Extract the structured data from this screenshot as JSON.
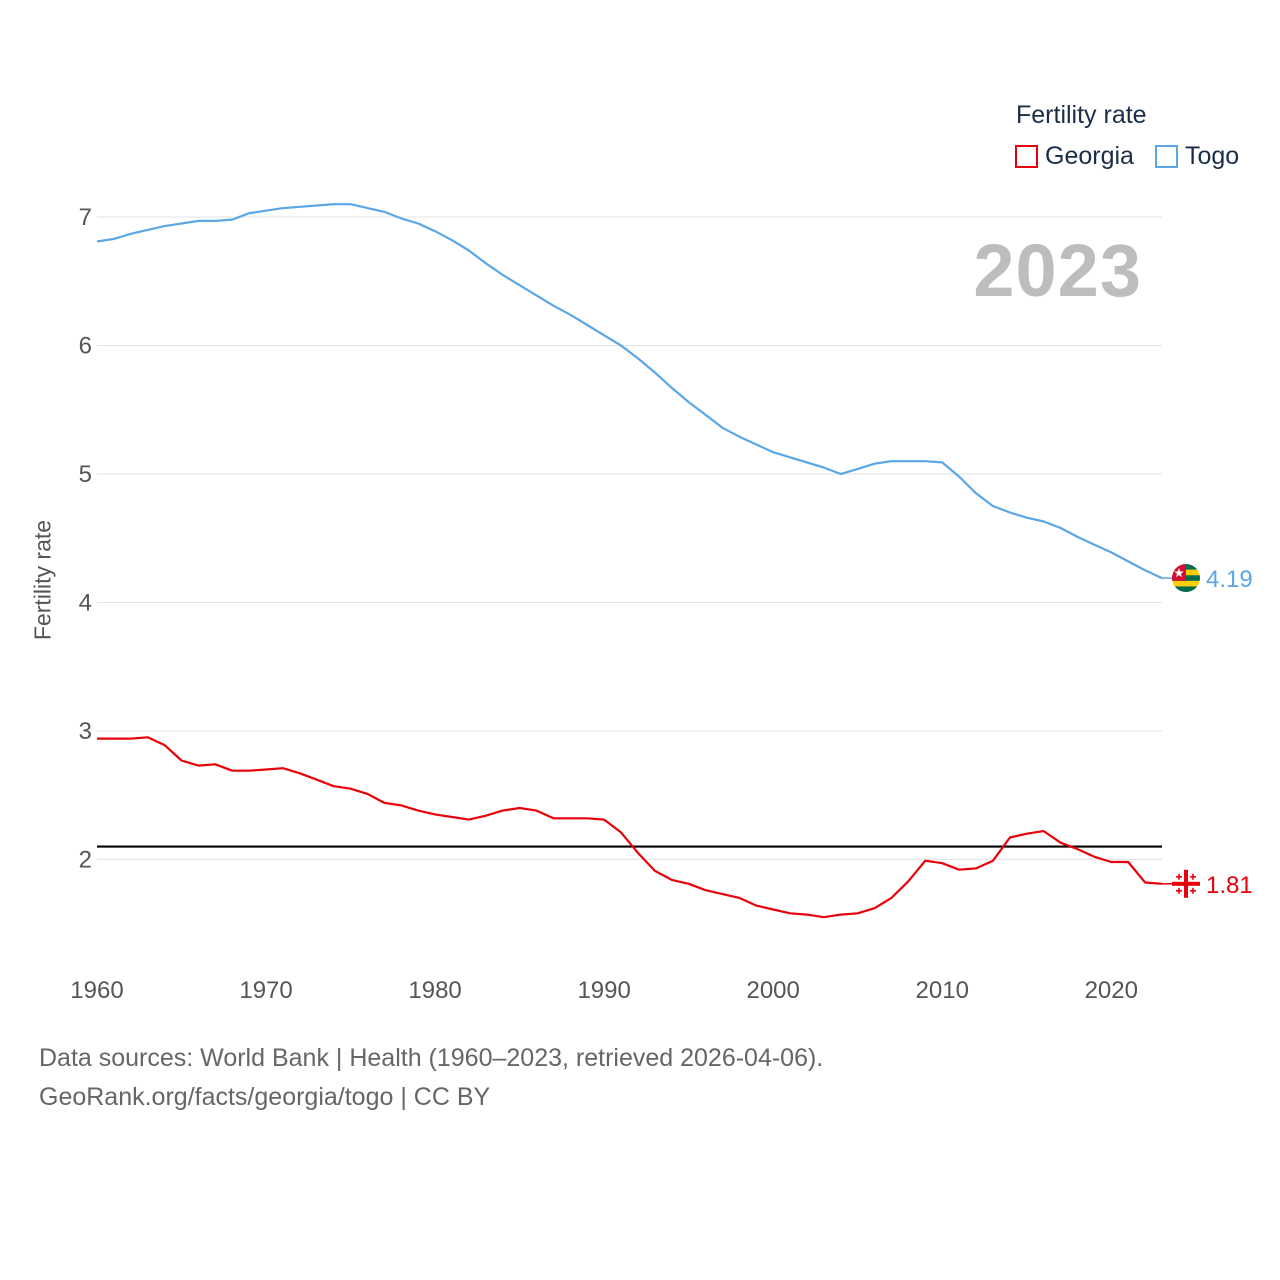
{
  "legend": {
    "title": "Fertility rate",
    "items": [
      {
        "label": "Georgia",
        "color": "#e8000b"
      },
      {
        "label": "Togo",
        "color": "#5aa6e6"
      }
    ]
  },
  "watermark_year": "2023",
  "footer": {
    "line1": "Data sources: World Bank | Health (1960–2023, retrieved 2026-04-06).",
    "line2": "GeoRank.org/facts/georgia/togo | CC BY"
  },
  "chart_data": {
    "type": "line",
    "title": "Fertility rate",
    "xlabel": "",
    "ylabel": "Fertility rate",
    "x": [
      1960,
      1961,
      1962,
      1963,
      1964,
      1965,
      1966,
      1967,
      1968,
      1969,
      1970,
      1971,
      1972,
      1973,
      1974,
      1975,
      1976,
      1977,
      1978,
      1979,
      1980,
      1981,
      1982,
      1983,
      1984,
      1985,
      1986,
      1987,
      1988,
      1989,
      1990,
      1991,
      1992,
      1993,
      1994,
      1995,
      1996,
      1997,
      1998,
      1999,
      2000,
      2001,
      2002,
      2003,
      2004,
      2005,
      2006,
      2007,
      2008,
      2009,
      2010,
      2011,
      2012,
      2013,
      2014,
      2015,
      2016,
      2017,
      2018,
      2019,
      2020,
      2021,
      2022,
      2023
    ],
    "xlim": [
      1960,
      2023
    ],
    "ylim": [
      1.1,
      7.6
    ],
    "xticks": [
      "1960",
      "1970",
      "1980",
      "1990",
      "2000",
      "2010",
      "2020"
    ],
    "yticks": [
      "2",
      "3",
      "4",
      "5",
      "6",
      "7"
    ],
    "reference_line": 2.1,
    "series": [
      {
        "name": "Togo",
        "color": "#5aa6e6",
        "end_label": "4.19",
        "values": [
          6.81,
          6.83,
          6.87,
          6.9,
          6.93,
          6.95,
          6.97,
          6.97,
          6.98,
          7.03,
          7.05,
          7.07,
          7.08,
          7.09,
          7.1,
          7.1,
          7.07,
          7.04,
          6.99,
          6.95,
          6.89,
          6.82,
          6.74,
          6.64,
          6.55,
          6.47,
          6.39,
          6.31,
          6.24,
          6.16,
          6.08,
          6.0,
          5.9,
          5.79,
          5.67,
          5.56,
          5.46,
          5.36,
          5.29,
          5.23,
          5.17,
          5.13,
          5.09,
          5.05,
          5.0,
          5.04,
          5.08,
          5.1,
          5.1,
          5.1,
          5.09,
          4.98,
          4.85,
          4.75,
          4.7,
          4.66,
          4.63,
          4.58,
          4.51,
          4.45,
          4.39,
          4.32,
          4.25,
          4.19
        ]
      },
      {
        "name": "Georgia",
        "color": "#e8000b",
        "end_label": "1.81",
        "values": [
          2.94,
          2.94,
          2.94,
          2.95,
          2.89,
          2.77,
          2.73,
          2.74,
          2.69,
          2.69,
          2.7,
          2.71,
          2.67,
          2.62,
          2.57,
          2.55,
          2.51,
          2.44,
          2.42,
          2.38,
          2.35,
          2.33,
          2.31,
          2.34,
          2.38,
          2.4,
          2.38,
          2.32,
          2.32,
          2.32,
          2.31,
          2.21,
          2.05,
          1.91,
          1.84,
          1.81,
          1.76,
          1.73,
          1.7,
          1.64,
          1.61,
          1.58,
          1.57,
          1.55,
          1.57,
          1.58,
          1.62,
          1.7,
          1.83,
          1.99,
          1.97,
          1.92,
          1.93,
          1.99,
          2.17,
          2.2,
          2.22,
          2.13,
          2.08,
          2.02,
          1.98,
          1.98,
          1.82,
          1.81
        ]
      }
    ]
  }
}
